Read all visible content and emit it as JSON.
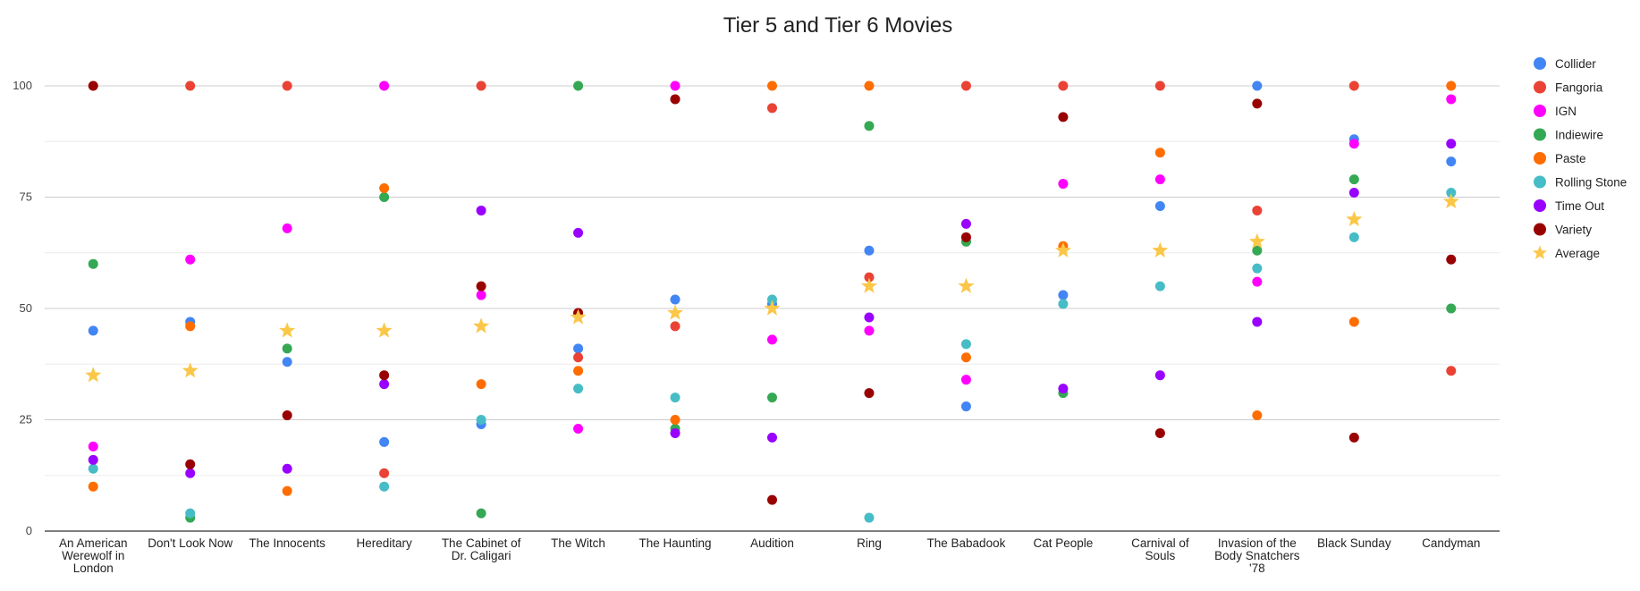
{
  "chart_data": {
    "type": "scatter",
    "title": "Tier 5 and Tier 6 Movies",
    "xlabel": "",
    "ylabel": "",
    "ylim": [
      0,
      100
    ],
    "yticks": [
      0,
      25,
      50,
      75,
      100
    ],
    "grid": true,
    "legend_position": "right",
    "categories": [
      [
        "An American",
        "Werewolf in",
        "London"
      ],
      [
        "Don't Look Now"
      ],
      [
        "The Innocents"
      ],
      [
        "Hereditary"
      ],
      [
        "The Cabinet of",
        "Dr. Caligari"
      ],
      [
        "The Witch"
      ],
      [
        "The Haunting"
      ],
      [
        "Audition"
      ],
      [
        "Ring"
      ],
      [
        "The Babadook"
      ],
      [
        "Cat People"
      ],
      [
        "Carnival of",
        "Souls"
      ],
      [
        "Invasion of the",
        "Body Snatchers",
        "'78"
      ],
      [
        "Black Sunday"
      ],
      [
        "Candyman"
      ]
    ],
    "series": [
      {
        "name": "Collider",
        "color": "#4285f4",
        "marker": "circle",
        "values": [
          45,
          47,
          38,
          20,
          24,
          41,
          52,
          51,
          63,
          28,
          53,
          73,
          100,
          88,
          83
        ]
      },
      {
        "name": "Fangoria",
        "color": "#ea4335",
        "marker": "circle",
        "values": [
          null,
          100,
          100,
          13,
          100,
          39,
          46,
          95,
          57,
          100,
          100,
          100,
          72,
          100,
          36
        ]
      },
      {
        "name": "IGN",
        "color": "#ff00ff",
        "marker": "circle",
        "values": [
          19,
          61,
          68,
          100,
          53,
          23,
          100,
          43,
          45,
          34,
          78,
          79,
          56,
          87,
          97
        ]
      },
      {
        "name": "Indiewire",
        "color": "#34a853",
        "marker": "circle",
        "values": [
          60,
          3,
          41,
          75,
          4,
          100,
          23,
          30,
          91,
          65,
          31,
          null,
          63,
          79,
          50
        ]
      },
      {
        "name": "Paste",
        "color": "#ff6d01",
        "marker": "circle",
        "values": [
          10,
          46,
          9,
          77,
          33,
          36,
          25,
          100,
          100,
          39,
          64,
          85,
          26,
          47,
          100
        ]
      },
      {
        "name": "Rolling Stone",
        "color": "#46bdc6",
        "marker": "circle",
        "values": [
          14,
          4,
          null,
          10,
          25,
          32,
          30,
          52,
          3,
          42,
          51,
          55,
          59,
          66,
          76
        ]
      },
      {
        "name": "Time Out",
        "color": "#9900ff",
        "marker": "circle",
        "values": [
          16,
          13,
          14,
          33,
          72,
          67,
          22,
          21,
          48,
          69,
          32,
          35,
          47,
          76,
          87
        ]
      },
      {
        "name": "Variety",
        "color": "#990000",
        "marker": "circle",
        "values": [
          100,
          15,
          26,
          35,
          55,
          49,
          97,
          7,
          31,
          66,
          93,
          22,
          96,
          21,
          61
        ]
      },
      {
        "name": "Average",
        "color": "#fbc748",
        "marker": "star",
        "values": [
          35,
          36,
          45,
          45,
          46,
          48,
          49,
          50,
          55,
          55,
          63,
          63,
          65,
          70,
          74
        ]
      }
    ]
  }
}
